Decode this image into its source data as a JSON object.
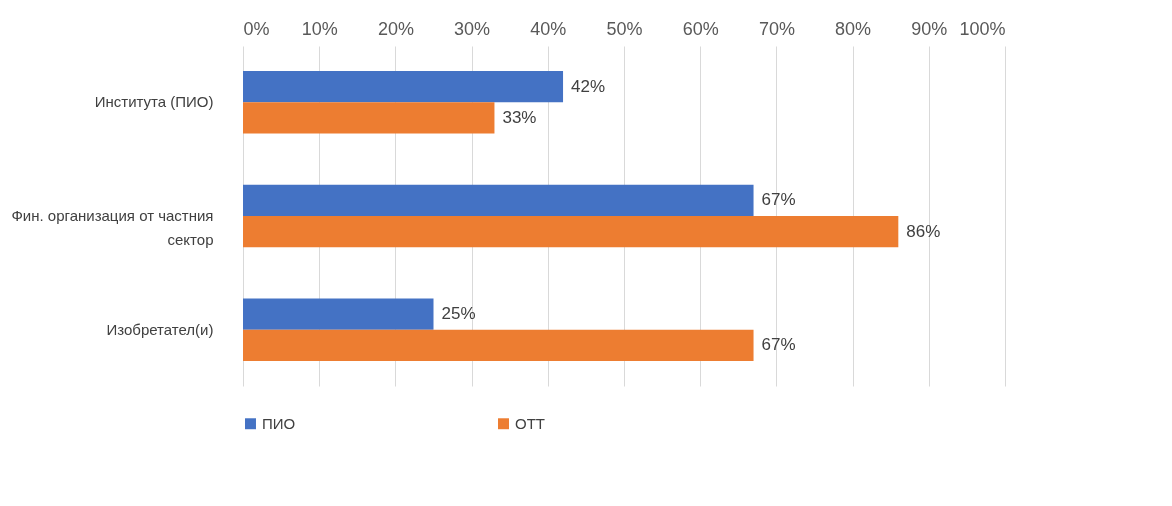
{
  "chart_data": {
    "type": "bar",
    "orientation": "horizontal",
    "categories": [
      "Института (ПИО)",
      "Фин. организация от частния сектор",
      "Изобретател(и)"
    ],
    "series": [
      {
        "name": "ПИО",
        "color": "#4472c4",
        "values": [
          42,
          67,
          25
        ],
        "value_labels": [
          "42%",
          "67%",
          "25%"
        ]
      },
      {
        "name": "ОТТ",
        "color": "#ed7d31",
        "values": [
          33,
          86,
          67
        ],
        "value_labels": [
          "33%",
          "86%",
          "67%"
        ]
      }
    ],
    "xlim": [
      0,
      100
    ],
    "xticks": [
      {
        "value": 0,
        "label": "0%"
      },
      {
        "value": 10,
        "label": "10%"
      },
      {
        "value": 20,
        "label": "20%"
      },
      {
        "value": 30,
        "label": "30%"
      },
      {
        "value": 40,
        "label": "40%"
      },
      {
        "value": 50,
        "label": "50%"
      },
      {
        "value": 60,
        "label": "60%"
      },
      {
        "value": 70,
        "label": "70%"
      },
      {
        "value": 80,
        "label": "80%"
      },
      {
        "value": 90,
        "label": "90%"
      },
      {
        "value": 100,
        "label": "100%"
      }
    ],
    "grid": "x",
    "legend": "bottom"
  }
}
